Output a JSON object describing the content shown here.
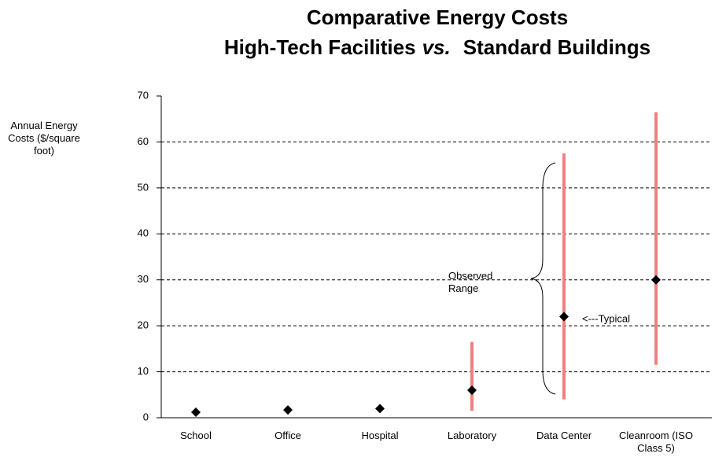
{
  "chart_data": {
    "type": "range",
    "title": {
      "line1": "Comparative Energy Costs",
      "line2": [
        "High-Tech Facilities",
        "vs.",
        "Standard Buildings"
      ]
    },
    "y_label": "Annual Energy Costs ($/square foot)",
    "categories": [
      "School",
      "Office",
      "Hospital",
      "Laboratory",
      "Data Center",
      "Cleanroom (ISO Class 5)"
    ],
    "low": [
      0.5,
      1,
      1.5,
      1.5,
      4,
      11.5
    ],
    "high": [
      1.8,
      2.5,
      2.8,
      16.5,
      57.5,
      66.5
    ],
    "typical": [
      1.2,
      1.7,
      2,
      6,
      22,
      30
    ],
    "range_color": "#f08080",
    "marker_color": "#000000",
    "annotations": {
      "range": "Observed Range",
      "typical": "<---Typical"
    },
    "ylim": [
      0,
      70
    ],
    "yticks": [
      0,
      10,
      20,
      30,
      40,
      50,
      60,
      70
    ],
    "grid": true
  }
}
